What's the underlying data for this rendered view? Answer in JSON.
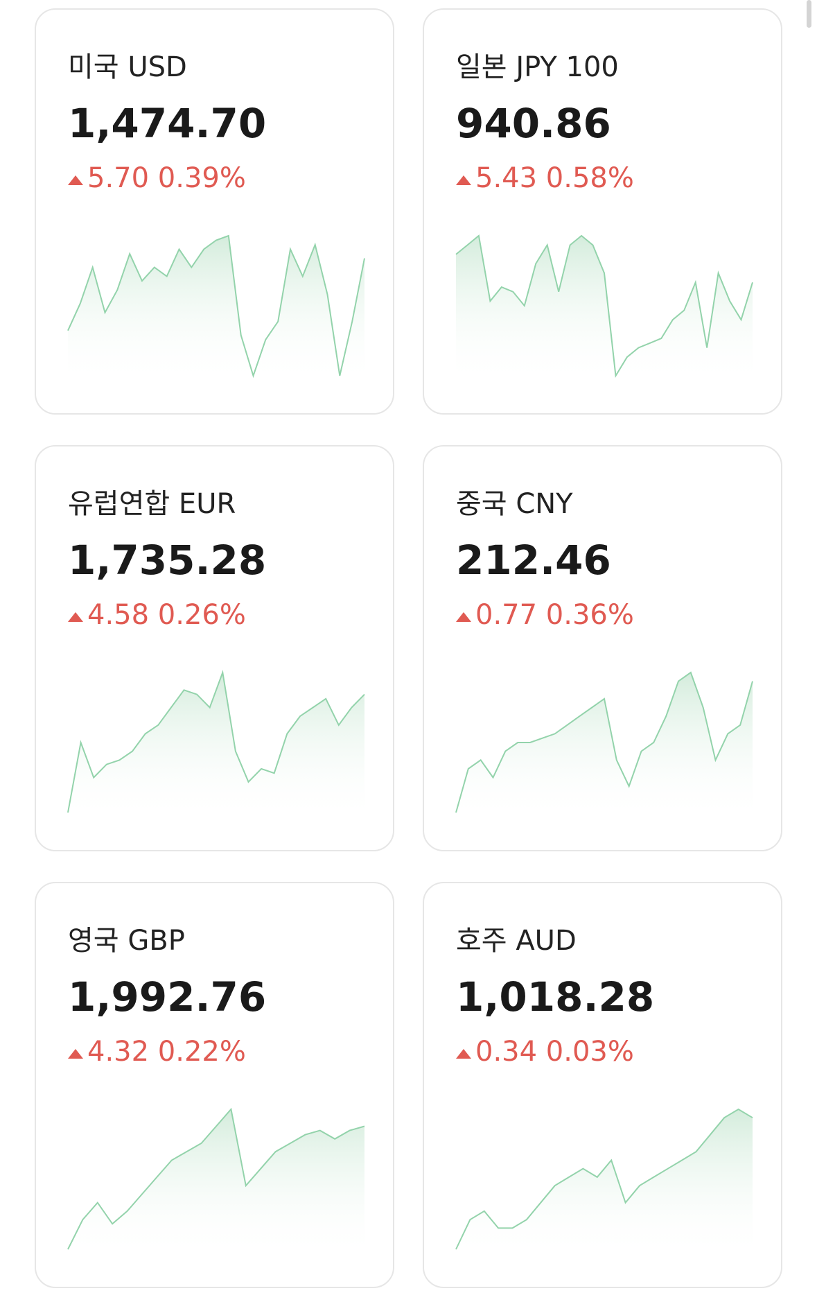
{
  "cards": [
    {
      "title": "미국 USD",
      "rate": "1,474.70",
      "change": "5.70",
      "percent": "0.39%",
      "spark": [
        60,
        90,
        130,
        80,
        105,
        145,
        115,
        130,
        120,
        150,
        130,
        150,
        160,
        165,
        55,
        10,
        50,
        70,
        150,
        120,
        155,
        100,
        10,
        70,
        140
      ]
    },
    {
      "title": "일본 JPY 100",
      "rate": "940.86",
      "change": "5.43",
      "percent": "0.58%",
      "spark": [
        140,
        150,
        160,
        90,
        105,
        100,
        85,
        130,
        150,
        100,
        150,
        160,
        150,
        120,
        10,
        30,
        40,
        45,
        50,
        70,
        80,
        110,
        40,
        120,
        90,
        70,
        110
      ]
    },
    {
      "title": "유럽연합 EUR",
      "rate": "1,735.28",
      "change": "4.58",
      "percent": "0.26%",
      "spark": [
        5,
        85,
        45,
        60,
        65,
        75,
        95,
        105,
        125,
        145,
        140,
        125,
        165,
        75,
        40,
        55,
        50,
        95,
        115,
        125,
        135,
        105,
        125,
        140
      ]
    },
    {
      "title": "중국 CNY",
      "rate": "212.46",
      "change": "0.77",
      "percent": "0.36%",
      "spark": [
        5,
        55,
        65,
        45,
        75,
        85,
        85,
        90,
        95,
        105,
        115,
        125,
        135,
        65,
        35,
        75,
        85,
        115,
        155,
        165,
        125,
        65,
        95,
        105,
        155
      ]
    },
    {
      "title": "영국 GBP",
      "rate": "1,992.76",
      "change": "4.32",
      "percent": "0.22%",
      "spark": [
        5,
        40,
        60,
        35,
        50,
        70,
        90,
        110,
        120,
        130,
        150,
        170,
        80,
        100,
        120,
        130,
        140,
        145,
        135,
        145,
        150
      ]
    },
    {
      "title": "호주 AUD",
      "rate": "1,018.28",
      "change": "0.34",
      "percent": "0.03%",
      "spark": [
        5,
        40,
        50,
        30,
        30,
        40,
        60,
        80,
        90,
        100,
        90,
        110,
        60,
        80,
        90,
        100,
        110,
        120,
        140,
        160,
        170,
        160
      ]
    }
  ]
}
